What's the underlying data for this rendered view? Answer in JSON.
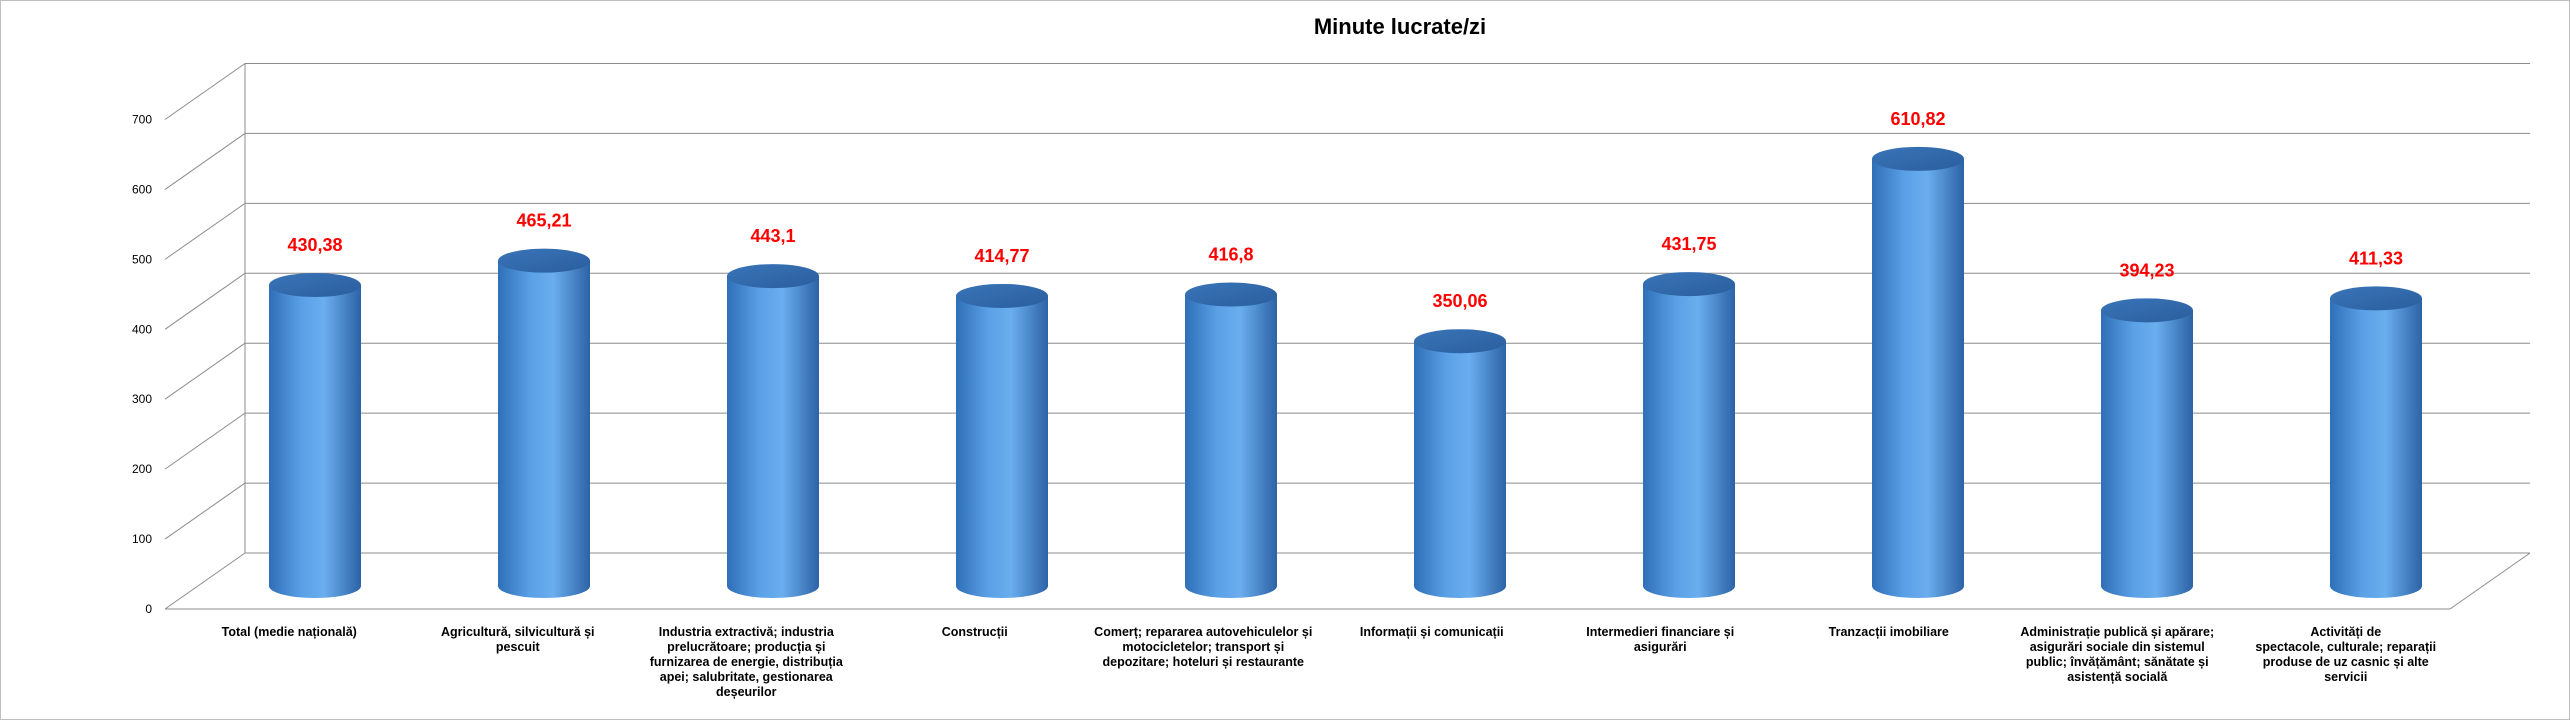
{
  "chart_data": {
    "type": "bar",
    "title": "Minute lucrate/zi",
    "xlabel": "",
    "ylabel": "",
    "ylim": [
      0,
      700
    ],
    "yticks": [
      "0",
      "100",
      "200",
      "300",
      "400",
      "500",
      "600",
      "700"
    ],
    "grid": true,
    "bar_color": "#4a90d9",
    "label_color": "#ff0000",
    "categories": [
      [
        "Total (medie națională)"
      ],
      [
        "Agricultură,  silvicultură  și",
        "pescuit"
      ],
      [
        "Industria extractivă;  industria",
        "prelucrătoare;  producția  și",
        "furnizarea de energie,  distribuția",
        "apei;  salubritate,  gestionarea",
        "deșeurilor"
      ],
      [
        "Construcții"
      ],
      [
        "Comerț; repararea autovehiculelor  și",
        "motocicletelor;  transport  și",
        "depozitare; hoteluri și restaurante"
      ],
      [
        "Informații și comunicații"
      ],
      [
        "Intermedieri  financiare  și",
        "asigurări"
      ],
      [
        "Tranzacții  imobiliare"
      ],
      [
        "Administrație publică și apărare;",
        "asigurări sociale din sistemul",
        "public;  învățământ;  sănătate  și",
        "asistență  socială"
      ],
      [
        "Activități  de",
        "spectacole,  culturale;  reparații",
        "produse de uz casnic  și alte",
        "servicii"
      ]
    ],
    "values": [
      430.38,
      465.21,
      443.1,
      414.77,
      416.8,
      350.06,
      431.75,
      610.82,
      394.23,
      411.33
    ],
    "value_labels": [
      "430,38",
      "465,21",
      "443,1",
      "414,77",
      "416,8",
      "350,06",
      "431,75",
      "610,82",
      "394,23",
      "411,33"
    ]
  }
}
